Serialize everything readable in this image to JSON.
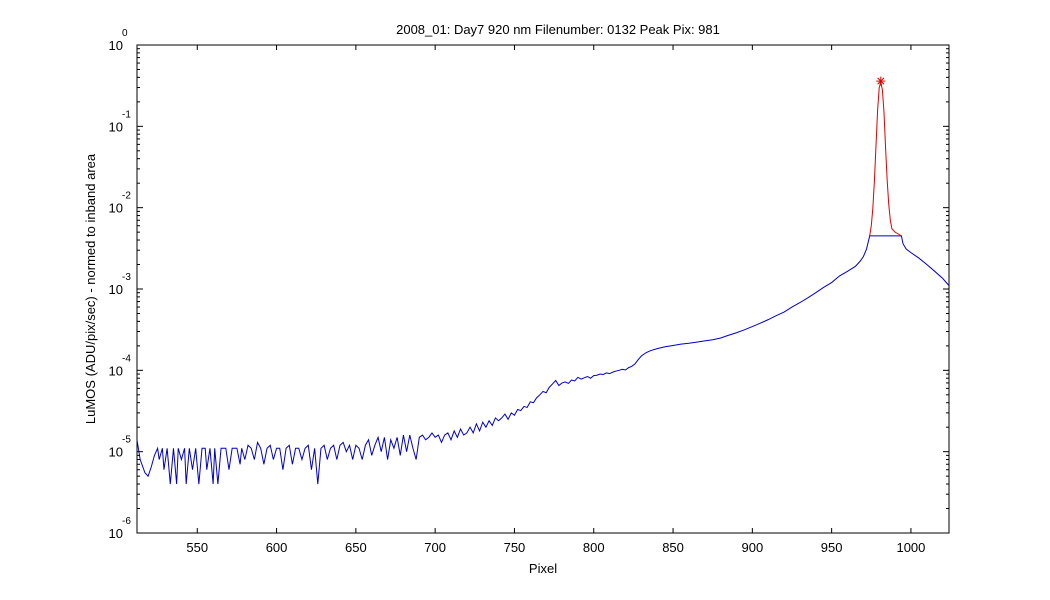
{
  "chart_data": {
    "type": "line",
    "title": "2008_01: Day7  920 nm  Filenumber: 0132 Peak Pix: 981",
    "xlabel": "Pixel",
    "ylabel": "LuMOS (ADU/pix/sec) - normed to inband area",
    "xlim": [
      512,
      1024
    ],
    "ylim": [
      1e-06,
      1
    ],
    "yscale": "log",
    "grid": false,
    "x_ticks": [
      550,
      600,
      650,
      700,
      750,
      800,
      850,
      900,
      950,
      1000
    ],
    "x_tick_labels": [
      "550",
      "600",
      "650",
      "700",
      "750",
      "800",
      "850",
      "900",
      "950",
      "1000"
    ],
    "y_ticks": [
      {
        "value": 1,
        "base": "10",
        "exp": "0"
      },
      {
        "value": 0.1,
        "base": "10",
        "exp": "-1"
      },
      {
        "value": 0.01,
        "base": "10",
        "exp": "-2"
      },
      {
        "value": 0.001,
        "base": "10",
        "exp": "-3"
      },
      {
        "value": 0.0001,
        "base": "10",
        "exp": "-4"
      },
      {
        "value": 1e-05,
        "base": "10",
        "exp": "-5"
      },
      {
        "value": 1e-06,
        "base": "10",
        "exp": "-6"
      }
    ],
    "series": [
      {
        "color": "#0000c8",
        "style": "line",
        "points": [
          [
            512,
            1.4e-05
          ],
          [
            514,
            8e-06
          ],
          [
            517,
            5.5e-06
          ],
          [
            519,
            5e-06
          ],
          [
            521,
            6.5e-06
          ],
          [
            523,
            9e-06
          ],
          [
            525,
            1.1e-05
          ],
          [
            526,
            8e-06
          ],
          [
            528,
            1.1e-05
          ],
          [
            529,
            6e-06
          ],
          [
            531,
            1.1e-05
          ],
          [
            533,
            4e-06
          ],
          [
            535,
            1.1e-05
          ],
          [
            537,
            4e-06
          ],
          [
            538,
            1.1e-05
          ],
          [
            540,
            8e-06
          ],
          [
            542,
            1.1e-05
          ],
          [
            543,
            4e-06
          ],
          [
            545,
            1.1e-05
          ],
          [
            547,
            6e-06
          ],
          [
            549,
            1.1e-05
          ],
          [
            551,
            4e-06
          ],
          [
            553,
            1.1e-05
          ],
          [
            555,
            1.1e-05
          ],
          [
            556,
            6e-06
          ],
          [
            558,
            1.1e-05
          ],
          [
            560,
            4e-06
          ],
          [
            561,
            1.1e-05
          ],
          [
            563,
            4e-06
          ],
          [
            565,
            1.1e-05
          ],
          [
            568,
            1.1e-05
          ],
          [
            570,
            6e-06
          ],
          [
            572,
            1.1e-05
          ],
          [
            575,
            1.1e-05
          ],
          [
            577,
            7e-06
          ],
          [
            578,
            1.1e-05
          ],
          [
            580,
            8e-06
          ],
          [
            582,
            1.2e-05
          ],
          [
            584,
            1.1e-05
          ],
          [
            586,
            8e-06
          ],
          [
            588,
            1.3e-05
          ],
          [
            590,
            1.1e-05
          ],
          [
            592,
            7e-06
          ],
          [
            594,
            1.1e-05
          ],
          [
            596,
            1.2e-05
          ],
          [
            598,
            8e-06
          ],
          [
            600,
            1.1e-05
          ],
          [
            602,
            1.1e-05
          ],
          [
            604,
            6e-06
          ],
          [
            606,
            1.1e-05
          ],
          [
            608,
            1.2e-05
          ],
          [
            610,
            7e-06
          ],
          [
            612,
            1.1e-05
          ],
          [
            614,
            1.1e-05
          ],
          [
            616,
            8e-06
          ],
          [
            618,
            1.1e-05
          ],
          [
            620,
            1.2e-05
          ],
          [
            622,
            6e-06
          ],
          [
            624,
            1.1e-05
          ],
          [
            626,
            4e-06
          ],
          [
            628,
            1.1e-05
          ],
          [
            630,
            1.2e-05
          ],
          [
            632,
            8e-06
          ],
          [
            634,
            1.1e-05
          ],
          [
            636,
            1.2e-05
          ],
          [
            638,
            8e-06
          ],
          [
            640,
            1.2e-05
          ],
          [
            642,
            1.3e-05
          ],
          [
            644,
            1e-05
          ],
          [
            646,
            1.2e-05
          ],
          [
            648,
            8e-06
          ],
          [
            650,
            1.2e-05
          ],
          [
            652,
            1.1e-05
          ],
          [
            654,
            8e-06
          ],
          [
            656,
            1.2e-05
          ],
          [
            658,
            1.4e-05
          ],
          [
            660,
            9e-06
          ],
          [
            662,
            1.2e-05
          ],
          [
            664,
            1.5e-05
          ],
          [
            666,
            1e-05
          ],
          [
            668,
            1.5e-05
          ],
          [
            670,
            8e-06
          ],
          [
            672,
            1.4e-05
          ],
          [
            674,
            1.1e-05
          ],
          [
            676,
            1.5e-05
          ],
          [
            678,
            9e-06
          ],
          [
            680,
            1.6e-05
          ],
          [
            682,
            1e-05
          ],
          [
            684,
            1.6e-05
          ],
          [
            686,
            1.1e-05
          ],
          [
            688,
            8e-06
          ],
          [
            690,
            1.5e-05
          ],
          [
            692,
            1.6e-05
          ],
          [
            694,
            1.4e-05
          ],
          [
            696,
            1.5e-05
          ],
          [
            698,
            1.7e-05
          ],
          [
            700,
            1.5e-05
          ],
          [
            702,
            1.6e-05
          ],
          [
            704,
            1.3e-05
          ],
          [
            706,
            1.6e-05
          ],
          [
            708,
            1.7e-05
          ],
          [
            710,
            1.4e-05
          ],
          [
            712,
            1.8e-05
          ],
          [
            714,
            1.5e-05
          ],
          [
            716,
            1.9e-05
          ],
          [
            718,
            1.6e-05
          ],
          [
            720,
            1.7e-05
          ],
          [
            722,
            2e-05
          ],
          [
            724,
            1.7e-05
          ],
          [
            726,
            2.2e-05
          ],
          [
            728,
            1.8e-05
          ],
          [
            730,
            2.3e-05
          ],
          [
            732,
            2e-05
          ],
          [
            734,
            2.4e-05
          ],
          [
            736,
            2.1e-05
          ],
          [
            738,
            2.6e-05
          ],
          [
            740,
            2.4e-05
          ],
          [
            742,
            2.6e-05
          ],
          [
            744,
            2.9e-05
          ],
          [
            746,
            2.5e-05
          ],
          [
            748,
            3e-05
          ],
          [
            750,
            2.8e-05
          ],
          [
            752,
            3.3e-05
          ],
          [
            754,
            3.2e-05
          ],
          [
            756,
            3.6e-05
          ],
          [
            758,
            3.5e-05
          ],
          [
            760,
            4.1e-05
          ],
          [
            762,
            4e-05
          ],
          [
            764,
            4.6e-05
          ],
          [
            766,
            5e-05
          ],
          [
            768,
            5.5e-05
          ],
          [
            770,
            5.3e-05
          ],
          [
            772,
            6.2e-05
          ],
          [
            774,
            6.8e-05
          ],
          [
            776,
            7.5e-05
          ],
          [
            778,
            6.5e-05
          ],
          [
            780,
            7e-05
          ],
          [
            782,
            7.2e-05
          ],
          [
            784,
            6.9e-05
          ],
          [
            786,
            7.6e-05
          ],
          [
            788,
            7.4e-05
          ],
          [
            790,
            8.2e-05
          ],
          [
            792,
            7.8e-05
          ],
          [
            794,
            8.1e-05
          ],
          [
            796,
            8.4e-05
          ],
          [
            798,
            8e-05
          ],
          [
            800,
            8.6e-05
          ],
          [
            802,
            8.7e-05
          ],
          [
            804,
            9e-05
          ],
          [
            806,
            8.9e-05
          ],
          [
            808,
            9.3e-05
          ],
          [
            810,
            9.1e-05
          ],
          [
            812,
            9.5e-05
          ],
          [
            814,
            9.8e-05
          ],
          [
            816,
            0.0001
          ],
          [
            818,
            0.000103
          ],
          [
            820,
            0.000101
          ],
          [
            822,
            0.000108
          ],
          [
            824,
            0.000112
          ],
          [
            826,
            0.00012
          ],
          [
            828,
            0.000135
          ],
          [
            830,
            0.00015
          ],
          [
            833,
            0.000165
          ],
          [
            836,
            0.000175
          ],
          [
            840,
            0.000185
          ],
          [
            845,
            0.000195
          ],
          [
            850,
            0.000202
          ],
          [
            855,
            0.00021
          ],
          [
            860,
            0.000215
          ],
          [
            865,
            0.000222
          ],
          [
            870,
            0.00023
          ],
          [
            875,
            0.000238
          ],
          [
            880,
            0.00025
          ],
          [
            885,
            0.00027
          ],
          [
            890,
            0.00029
          ],
          [
            895,
            0.000315
          ],
          [
            900,
            0.000345
          ],
          [
            905,
            0.00038
          ],
          [
            910,
            0.00042
          ],
          [
            915,
            0.00047
          ],
          [
            920,
            0.00052
          ],
          [
            925,
            0.0006
          ],
          [
            930,
            0.00068
          ],
          [
            935,
            0.00078
          ],
          [
            940,
            0.0009
          ],
          [
            945,
            0.00105
          ],
          [
            950,
            0.0012
          ],
          [
            955,
            0.00145
          ],
          [
            960,
            0.00165
          ],
          [
            965,
            0.0019
          ],
          [
            968,
            0.0022
          ],
          [
            970,
            0.0025
          ],
          [
            972,
            0.0031
          ],
          [
            974,
            0.0045
          ],
          [
            994,
            0.0045
          ],
          [
            995,
            0.0036
          ],
          [
            997,
            0.0031
          ],
          [
            1000,
            0.0028
          ],
          [
            1005,
            0.0024
          ],
          [
            1010,
            0.002
          ],
          [
            1015,
            0.00165
          ],
          [
            1020,
            0.00135
          ],
          [
            1024,
            0.0011
          ]
        ]
      },
      {
        "color": "#e00000",
        "style": "line",
        "points": [
          [
            974,
            0.0045
          ],
          [
            975,
            0.006
          ],
          [
            976,
            0.01
          ],
          [
            977,
            0.022
          ],
          [
            978,
            0.06
          ],
          [
            979,
            0.16
          ],
          [
            980,
            0.3
          ],
          [
            981,
            0.35
          ],
          [
            982,
            0.28
          ],
          [
            983,
            0.15
          ],
          [
            984,
            0.055
          ],
          [
            985,
            0.022
          ],
          [
            986,
            0.011
          ],
          [
            987,
            0.007
          ],
          [
            988,
            0.0055
          ],
          [
            990,
            0.005
          ],
          [
            994,
            0.0045
          ]
        ]
      }
    ],
    "peak_marker": {
      "x": 981,
      "y": 0.36,
      "color": "#e00000",
      "symbol": "*"
    }
  }
}
